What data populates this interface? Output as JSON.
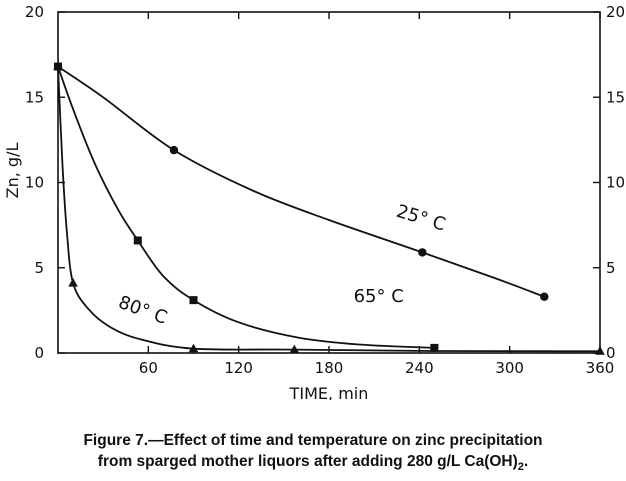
{
  "chart_data": {
    "type": "line",
    "xlabel": "TIME, min",
    "ylabel": "Zn, g/L",
    "xlim": [
      0,
      360
    ],
    "ylim": [
      0,
      20
    ],
    "xticks": [
      60,
      120,
      180,
      240,
      300,
      360
    ],
    "yticks": [
      0,
      5,
      10,
      15,
      20
    ],
    "grid": false,
    "series": [
      {
        "name": "25° C",
        "marker": "circle",
        "points": [
          [
            0,
            16.8
          ],
          [
            77,
            11.9
          ],
          [
            242,
            5.9
          ],
          [
            323,
            3.3
          ]
        ],
        "curve": [
          [
            0,
            16.8
          ],
          [
            30,
            15.0
          ],
          [
            77,
            11.9
          ],
          [
            130,
            9.5
          ],
          [
            180,
            7.8
          ],
          [
            242,
            5.9
          ],
          [
            290,
            4.4
          ],
          [
            323,
            3.3
          ]
        ]
      },
      {
        "name": "65° C",
        "marker": "square",
        "points": [
          [
            0,
            16.8
          ],
          [
            53,
            6.6
          ],
          [
            90,
            3.1
          ],
          [
            250,
            0.3
          ]
        ],
        "curve": [
          [
            0,
            16.8
          ],
          [
            10,
            14.3
          ],
          [
            25,
            11.0
          ],
          [
            40,
            8.4
          ],
          [
            53,
            6.6
          ],
          [
            70,
            4.5
          ],
          [
            90,
            3.1
          ],
          [
            120,
            1.8
          ],
          [
            160,
            0.9
          ],
          [
            200,
            0.5
          ],
          [
            250,
            0.3
          ]
        ]
      },
      {
        "name": "80° C",
        "marker": "triangle",
        "points": [
          [
            0,
            16.8
          ],
          [
            10,
            4.1
          ],
          [
            90,
            0.25
          ],
          [
            157,
            0.2
          ],
          [
            360,
            0.1
          ]
        ],
        "curve": [
          [
            0,
            16.8
          ],
          [
            3,
            11.0
          ],
          [
            6,
            7.0
          ],
          [
            10,
            4.1
          ],
          [
            20,
            2.6
          ],
          [
            35,
            1.5
          ],
          [
            55,
            0.8
          ],
          [
            90,
            0.25
          ],
          [
            157,
            0.2
          ],
          [
            250,
            0.12
          ],
          [
            360,
            0.1
          ]
        ]
      }
    ],
    "annotations": [
      {
        "text": "25° C",
        "x": 240,
        "y": 7.6,
        "rotate": 17
      },
      {
        "text": "65° C",
        "x": 213,
        "y": 3.0,
        "rotate": 0
      },
      {
        "text": "80° C",
        "x": 55,
        "y": 2.2,
        "rotate": 20
      }
    ]
  },
  "caption": {
    "line1": "Figure 7.—Effect of time and temperature on zinc precipitation",
    "line2_main": "from sparged mother liquors after adding 280 g/L Ca(OH)",
    "line2_sub": "2",
    "line2_end": "."
  }
}
